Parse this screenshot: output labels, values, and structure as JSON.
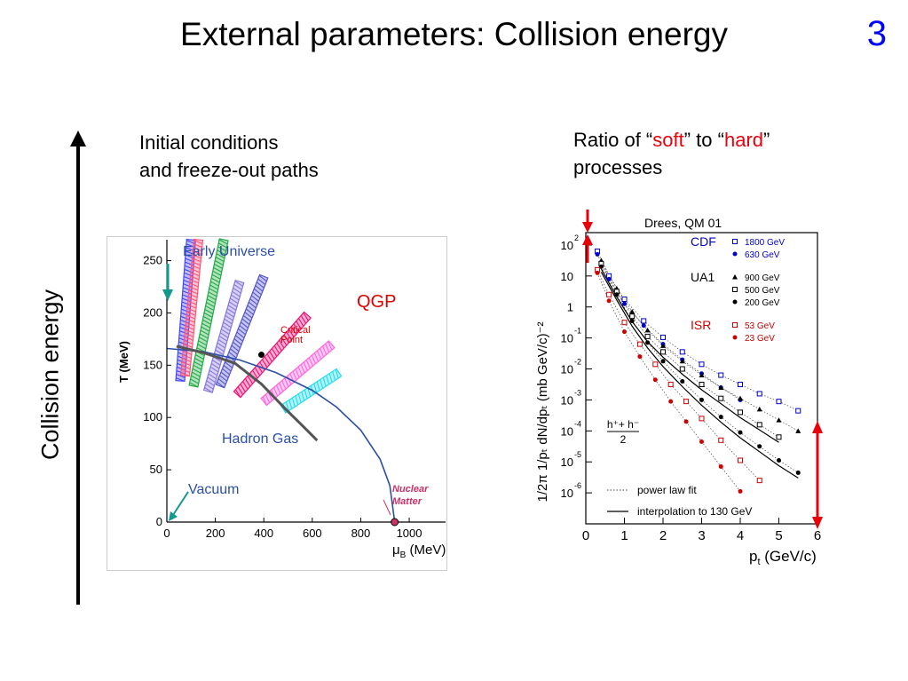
{
  "slide": {
    "title": "External parameters: Collision energy",
    "number": "3",
    "axis_label": "Collision energy",
    "left_heading": [
      "Initial conditions",
      "and freeze-out paths"
    ],
    "right_heading": {
      "line1_prefix": "Ratio of “",
      "soft": "soft",
      "line1_mid": "” to “",
      "hard": "hard",
      "line1_suffix": "”",
      "line2": "processes"
    },
    "colors": {
      "highlight": "#e8000b",
      "arrow": "#000000"
    }
  },
  "chart_data": [
    {
      "type": "phase-diagram",
      "ylabel": "T (MeV)",
      "xlabel_main": "μ",
      "xlabel_sub": "B",
      "xlabel_unit": " (MeV)",
      "xlim": [
        0,
        1150
      ],
      "ylim": [
        0,
        270
      ],
      "xticks": [
        0,
        200,
        400,
        600,
        800,
        1000
      ],
      "yticks": [
        0,
        50,
        100,
        150,
        200,
        250
      ],
      "labels": {
        "early_universe": "Early Universe",
        "qgp": "QGP",
        "critical": [
          "Critical",
          "Point"
        ],
        "hadron_gas": "Hadron Gas",
        "vacuum": "Vacuum",
        "nuclear_matter": [
          "Nuclear",
          "Matter"
        ]
      },
      "phase_boundary": [
        [
          0,
          166
        ],
        [
          150,
          163
        ],
        [
          300,
          155
        ],
        [
          450,
          143
        ],
        [
          600,
          126
        ],
        [
          700,
          110
        ],
        [
          800,
          88
        ],
        [
          880,
          60
        ],
        [
          920,
          35
        ],
        [
          940,
          0
        ]
      ],
      "crossover_line": [
        [
          40,
          168
        ],
        [
          150,
          162
        ],
        [
          280,
          152
        ],
        [
          390,
          132
        ],
        [
          490,
          108
        ],
        [
          560,
          92
        ],
        [
          620,
          78
        ]
      ],
      "critical_point": [
        390,
        160
      ],
      "nuclear_matter_point": [
        940,
        0
      ],
      "freeze_out_paths": [
        {
          "color": "#4444ff",
          "start": [
            55,
            135
          ],
          "end": [
            100,
            270
          ]
        },
        {
          "color": "#ff5577",
          "start": [
            75,
            140
          ],
          "end": [
            130,
            270
          ]
        },
        {
          "color": "#22aa44",
          "start": [
            110,
            130
          ],
          "end": [
            235,
            270
          ]
        },
        {
          "color": "#8877dd",
          "start": [
            170,
            125
          ],
          "end": [
            300,
            230
          ]
        },
        {
          "color": "#5555cc",
          "start": [
            220,
            130
          ],
          "end": [
            400,
            235
          ]
        },
        {
          "color": "#ee1177",
          "start": [
            290,
            122
          ],
          "end": [
            580,
            198
          ]
        },
        {
          "color": "#ff66dd",
          "start": [
            400,
            115
          ],
          "end": [
            680,
            170
          ]
        },
        {
          "color": "#22ddee",
          "start": [
            480,
            108
          ],
          "end": [
            710,
            143
          ]
        }
      ]
    },
    {
      "type": "scatter",
      "source": "Drees, QM 01",
      "xlabel_main": "p",
      "xlabel_sub": "t",
      "xlabel_unit": " (GeV/c)",
      "ylabel": "1/2π 1/pₜ dN/dpₜ (mb GeV/c)⁻²",
      "yscale": "log",
      "xlim": [
        0,
        6
      ],
      "ylim_exp": [
        -7,
        2.4
      ],
      "xticks": [
        0,
        1,
        2,
        3,
        4,
        5,
        6
      ],
      "ytick_labels": [
        {
          "exp": 2,
          "base": "10",
          "sup": "2"
        },
        {
          "exp": 1,
          "base": "10",
          "sup": ""
        },
        {
          "exp": 0,
          "base": "1",
          "sup": ""
        },
        {
          "exp": -1,
          "base": "10",
          "sup": "-1"
        },
        {
          "exp": -2,
          "base": "10",
          "sup": "-2"
        },
        {
          "exp": -3,
          "base": "10",
          "sup": "-3"
        },
        {
          "exp": -4,
          "base": "10",
          "sup": "-4"
        },
        {
          "exp": -5,
          "base": "10",
          "sup": "-5"
        },
        {
          "exp": -6,
          "base": "10",
          "sup": "-6"
        }
      ],
      "annotation": {
        "numerator": "h⁺+ h⁻",
        "denominator": "2"
      },
      "legend": [
        {
          "group": "CDF",
          "color": "#0000cc",
          "entries": [
            {
              "label": "1800 GeV",
              "marker": "open-square"
            },
            {
              "label": "630 GeV",
              "marker": "filled-circle"
            }
          ]
        },
        {
          "group": "UA1",
          "color": "#000000",
          "entries": [
            {
              "label": "900 GeV",
              "marker": "filled-triangle"
            },
            {
              "label": "500 GeV",
              "marker": "open-square"
            },
            {
              "label": "200 GeV",
              "marker": "filled-circle"
            }
          ]
        },
        {
          "group": "ISR",
          "color": "#cc0000",
          "entries": [
            {
              "label": "53 GeV",
              "marker": "open-square"
            },
            {
              "label": "23 GeV",
              "marker": "filled-circle"
            }
          ]
        }
      ],
      "line_legend": [
        {
          "label": "power law fit",
          "style": "dotted"
        },
        {
          "label": "interpolation to 130 GeV",
          "style": "solid"
        }
      ],
      "series": [
        {
          "name": "1800 GeV",
          "color": "#0000cc",
          "marker": "open-square",
          "x": [
            0.3,
            0.6,
            1.0,
            1.5,
            2.0,
            2.5,
            3.0,
            3.5,
            4.0,
            4.5,
            5.0,
            5.5
          ],
          "log10y": [
            1.8,
            1.0,
            0.25,
            -0.45,
            -0.98,
            -1.45,
            -1.85,
            -2.2,
            -2.5,
            -2.8,
            -3.05,
            -3.35
          ]
        },
        {
          "name": "630 GeV",
          "color": "#0000cc",
          "marker": "filled-circle",
          "x": [
            0.3,
            0.6,
            1.0,
            1.5,
            2.0,
            2.5,
            3.0,
            3.5,
            4.0
          ],
          "log10y": [
            1.7,
            0.9,
            0.1,
            -0.6,
            -1.2,
            -1.7,
            -2.15,
            -2.6,
            -3.0
          ]
        },
        {
          "name": "900 GeV",
          "color": "#000000",
          "marker": "filled-triangle",
          "x": [
            0.4,
            0.8,
            1.2,
            1.6,
            2.0,
            2.5,
            3.0,
            3.5,
            4.0,
            4.5,
            5.0,
            5.5
          ],
          "log10y": [
            1.5,
            0.6,
            -0.15,
            -0.75,
            -1.25,
            -1.75,
            -2.2,
            -2.6,
            -2.95,
            -3.3,
            -3.65,
            -4.0
          ]
        },
        {
          "name": "500 GeV",
          "color": "#000000",
          "marker": "open-square",
          "x": [
            0.4,
            0.8,
            1.2,
            1.6,
            2.0,
            2.5,
            3.0,
            3.5,
            4.0,
            4.5,
            5.0
          ],
          "log10y": [
            1.4,
            0.5,
            -0.3,
            -0.95,
            -1.45,
            -2.0,
            -2.5,
            -2.95,
            -3.4,
            -3.8,
            -4.2
          ]
        },
        {
          "name": "200 GeV",
          "color": "#000000",
          "marker": "filled-circle",
          "x": [
            0.4,
            0.8,
            1.2,
            1.6,
            2.0,
            2.5,
            3.0,
            3.5,
            4.0,
            4.5,
            5.0,
            5.5
          ],
          "log10y": [
            1.3,
            0.4,
            -0.45,
            -1.15,
            -1.75,
            -2.4,
            -3.0,
            -3.55,
            -4.05,
            -4.5,
            -4.95,
            -5.35
          ]
        },
        {
          "name": "53 GeV",
          "color": "#cc0000",
          "marker": "open-square",
          "x": [
            0.3,
            0.6,
            1.0,
            1.4,
            1.8,
            2.2,
            2.6,
            3.0,
            3.5,
            4.0,
            4.5
          ],
          "log10y": [
            1.2,
            0.4,
            -0.5,
            -1.2,
            -1.85,
            -2.5,
            -3.05,
            -3.6,
            -4.3,
            -4.95,
            -5.6
          ]
        },
        {
          "name": "23 GeV",
          "color": "#cc0000",
          "marker": "filled-circle",
          "x": [
            0.3,
            0.6,
            1.0,
            1.4,
            1.8,
            2.2,
            2.6,
            3.0,
            3.5,
            4.0
          ],
          "log10y": [
            1.1,
            0.2,
            -0.8,
            -1.6,
            -2.35,
            -3.05,
            -3.7,
            -4.35,
            -5.15,
            -5.95
          ]
        }
      ]
    }
  ]
}
